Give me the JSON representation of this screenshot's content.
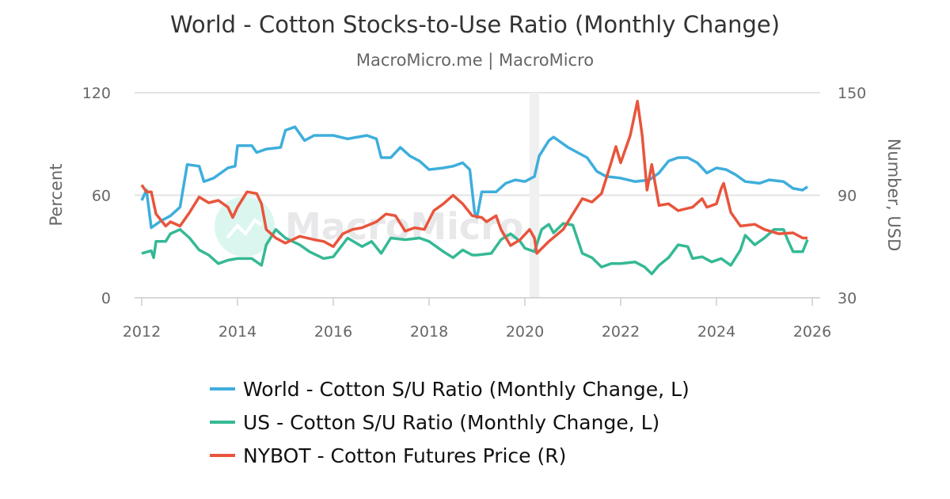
{
  "chart_data": {
    "type": "line",
    "title": "World - Cotton Stocks-to-Use Ratio (Monthly Change)",
    "subtitle": "MacroMicro.me | MacroMicro",
    "watermark": "MacroMicro",
    "ylabel_left": "Percent",
    "ylabel_right": "Number, USD",
    "ylim_left": [
      0,
      120
    ],
    "ylim_right": [
      30,
      150
    ],
    "yticks_left": [
      "0",
      "60",
      "120"
    ],
    "yticks_right": [
      "30",
      "90",
      "150"
    ],
    "xlim": [
      2012,
      2026
    ],
    "xticks": [
      "2012",
      "2014",
      "2016",
      "2018",
      "2020",
      "2022",
      "2024",
      "2026"
    ],
    "grid": true,
    "legend_position": "bottom",
    "shaded_period": [
      2020.1,
      2020.3
    ],
    "series": [
      {
        "name": "World - Cotton S/U Ratio (Monthly Change, L)",
        "axis": "left",
        "color": "#3eaedc",
        "x": [
          2012.0,
          2012.1,
          2012.2,
          2012.4,
          2012.6,
          2012.8,
          2012.95,
          2013.2,
          2013.3,
          2013.5,
          2013.8,
          2013.95,
          2014.0,
          2014.3,
          2014.4,
          2014.6,
          2014.9,
          2015.0,
          2015.2,
          2015.4,
          2015.6,
          2015.8,
          2016.0,
          2016.3,
          2016.5,
          2016.7,
          2016.9,
          2017.0,
          2017.2,
          2017.4,
          2017.6,
          2017.8,
          2018.0,
          2018.3,
          2018.5,
          2018.7,
          2018.85,
          2018.95,
          2019.0,
          2019.1,
          2019.4,
          2019.6,
          2019.8,
          2020.0,
          2020.2,
          2020.3,
          2020.5,
          2020.6,
          2020.7,
          2020.9,
          2021.1,
          2021.3,
          2021.5,
          2021.7,
          2022.0,
          2022.3,
          2022.6,
          2022.8,
          2023.0,
          2023.2,
          2023.4,
          2023.6,
          2023.8,
          2024.0,
          2024.2,
          2024.4,
          2024.6,
          2024.9,
          2025.1,
          2025.4,
          2025.6,
          2025.8,
          2025.9
        ],
        "values": [
          57,
          63,
          41,
          45,
          48,
          53,
          78,
          77,
          68,
          70,
          76,
          77,
          89,
          89,
          85,
          87,
          88,
          98,
          100,
          92,
          95,
          95,
          95,
          93,
          94,
          95,
          93,
          82,
          82,
          88,
          83,
          80,
          75,
          76,
          77,
          79,
          75,
          50,
          47,
          62,
          62,
          67,
          69,
          68,
          71,
          83,
          92,
          94,
          92,
          88,
          85,
          82,
          74,
          71,
          70,
          68,
          69,
          73,
          80,
          82,
          82,
          79,
          73,
          76,
          75,
          72,
          68,
          67,
          69,
          68,
          64,
          63,
          65
        ]
      },
      {
        "name": "US - Cotton S/U Ratio (Monthly Change, L)",
        "axis": "left",
        "color": "#35b995",
        "x": [
          2012.0,
          2012.2,
          2012.25,
          2012.3,
          2012.5,
          2012.6,
          2012.8,
          2013.0,
          2013.2,
          2013.4,
          2013.6,
          2013.8,
          2014.0,
          2014.3,
          2014.5,
          2014.6,
          2014.8,
          2015.0,
          2015.3,
          2015.5,
          2015.8,
          2016.0,
          2016.3,
          2016.6,
          2016.8,
          2017.0,
          2017.2,
          2017.5,
          2017.8,
          2018.0,
          2018.3,
          2018.5,
          2018.7,
          2018.9,
          2019.0,
          2019.3,
          2019.5,
          2019.7,
          2019.9,
          2020.0,
          2020.2,
          2020.35,
          2020.5,
          2020.6,
          2020.8,
          2021.0,
          2021.2,
          2021.4,
          2021.6,
          2021.8,
          2022.0,
          2022.3,
          2022.5,
          2022.65,
          2022.8,
          2023.0,
          2023.2,
          2023.4,
          2023.5,
          2023.7,
          2023.9,
          2024.1,
          2024.3,
          2024.5,
          2024.6,
          2024.8,
          2025.0,
          2025.2,
          2025.4,
          2025.5,
          2025.6,
          2025.8,
          2025.9
        ],
        "values": [
          26,
          27.5,
          23.5,
          33,
          33,
          37.5,
          40,
          35,
          28,
          25,
          20,
          22,
          23,
          23,
          19,
          31,
          40,
          35,
          31,
          27,
          23,
          24,
          35,
          30,
          33,
          26,
          35,
          34,
          35,
          33,
          27,
          23.5,
          28,
          25,
          25,
          26,
          34,
          37.5,
          33,
          29,
          27,
          40,
          43,
          38,
          43.5,
          42.6,
          26,
          23.5,
          18,
          20,
          20,
          21,
          18,
          14,
          19,
          23.5,
          31,
          30,
          23,
          24,
          21,
          23,
          19,
          28,
          36.6,
          31,
          35,
          40,
          40,
          33,
          27,
          27,
          34
        ]
      },
      {
        "name": "NYBOT - Cotton Futures Price (R)",
        "axis": "right",
        "color": "#e8553c",
        "x": [
          2012.0,
          2012.1,
          2012.2,
          2012.3,
          2012.5,
          2012.6,
          2012.8,
          2013.0,
          2013.2,
          2013.4,
          2013.6,
          2013.8,
          2013.9,
          2014.0,
          2014.2,
          2014.4,
          2014.5,
          2014.6,
          2014.8,
          2015.0,
          2015.3,
          2015.6,
          2015.8,
          2016.0,
          2016.2,
          2016.4,
          2016.6,
          2016.9,
          2017.1,
          2017.3,
          2017.5,
          2017.7,
          2017.9,
          2018.1,
          2018.3,
          2018.5,
          2018.7,
          2018.9,
          2019.1,
          2019.2,
          2019.4,
          2019.5,
          2019.7,
          2019.9,
          2020.1,
          2020.2,
          2020.25,
          2020.5,
          2020.8,
          2021.0,
          2021.2,
          2021.4,
          2021.6,
          2021.8,
          2021.9,
          2022.0,
          2022.2,
          2022.35,
          2022.45,
          2022.55,
          2022.65,
          2022.8,
          2023.0,
          2023.2,
          2023.5,
          2023.7,
          2023.8,
          2024.0,
          2024.1,
          2024.15,
          2024.3,
          2024.5,
          2024.8,
          2025.0,
          2025.3,
          2025.6,
          2025.8,
          2025.9
        ],
        "values": [
          96,
          92,
          92,
          79,
          72,
          74.5,
          72,
          80,
          89,
          85.6,
          87,
          83,
          77,
          83,
          92,
          91,
          85,
          70,
          65,
          62,
          66,
          64,
          63,
          60,
          67.5,
          70,
          71,
          74.5,
          79,
          78,
          69,
          71,
          70,
          81,
          85,
          90,
          85,
          78,
          77,
          74.5,
          78,
          70,
          60.6,
          64,
          70,
          65,
          56,
          63,
          70,
          79,
          88,
          86,
          91,
          109,
          118.5,
          109,
          125,
          145,
          125,
          93,
          108,
          84,
          85,
          81,
          83,
          88,
          83,
          85,
          94,
          97,
          80,
          72,
          73,
          70,
          67.5,
          68,
          65,
          65
        ]
      }
    ]
  }
}
